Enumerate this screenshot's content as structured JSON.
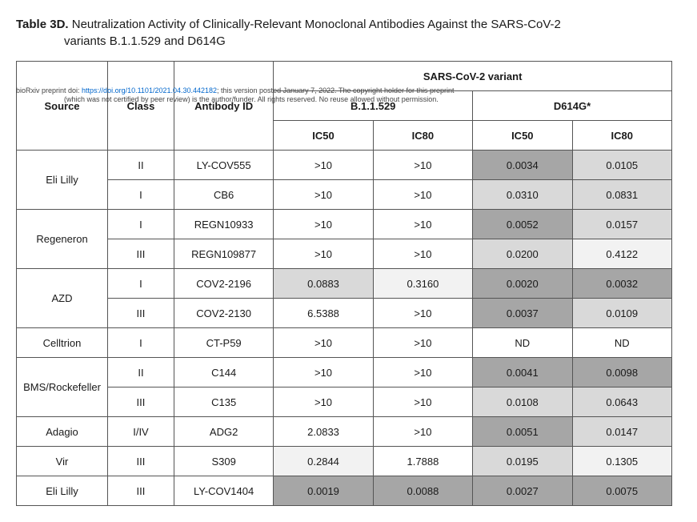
{
  "title": {
    "label": "Table 3D.",
    "text1": "Neutralization Activity of Clinically-Relevant Monoclonal Antibodies Against the SARS-CoV-2",
    "text2": "variants B.1.1.529 and D614G"
  },
  "preprint": {
    "prefix": "bioRxiv preprint doi: ",
    "doi": "https://doi.org/10.1101/2021.04.30.442182",
    "mid": "; this version posted January 7, 2022. The copyright holder for this preprint",
    "line2": "(which was not certified by peer review) is the author/funder. All rights reserved. No reuse allowed without permission."
  },
  "headers": {
    "source": "Source",
    "class": "Class",
    "antibody": "Antibody ID",
    "variant_span": "SARS-CoV-2 variant",
    "v1": "B.1.1.529",
    "v2": "D614G*",
    "ic50": "IC50",
    "ic80": "IC80"
  },
  "shades": {
    "white": "shade-0",
    "lightest": "shade-1",
    "light": "shade-2",
    "dark": "shade-3"
  },
  "rows": [
    {
      "source": "Eli Lilly",
      "source_rowspan": 2,
      "class": "II",
      "ab": "LY-COV555",
      "b_ic50": {
        "v": ">10",
        "s": "shade-0"
      },
      "b_ic80": {
        "v": ">10",
        "s": "shade-0"
      },
      "d_ic50": {
        "v": "0.0034",
        "s": "shade-3"
      },
      "d_ic80": {
        "v": "0.0105",
        "s": "shade-2"
      }
    },
    {
      "class": "I",
      "ab": "CB6",
      "b_ic50": {
        "v": ">10",
        "s": "shade-0"
      },
      "b_ic80": {
        "v": ">10",
        "s": "shade-0"
      },
      "d_ic50": {
        "v": "0.0310",
        "s": "shade-2"
      },
      "d_ic80": {
        "v": "0.0831",
        "s": "shade-2"
      }
    },
    {
      "source": "Regeneron",
      "source_rowspan": 2,
      "class": "I",
      "ab": "REGN10933",
      "b_ic50": {
        "v": ">10",
        "s": "shade-0"
      },
      "b_ic80": {
        "v": ">10",
        "s": "shade-0"
      },
      "d_ic50": {
        "v": "0.0052",
        "s": "shade-3"
      },
      "d_ic80": {
        "v": "0.0157",
        "s": "shade-2"
      }
    },
    {
      "class": "III",
      "ab": "REGN109877",
      "b_ic50": {
        "v": ">10",
        "s": "shade-0"
      },
      "b_ic80": {
        "v": ">10",
        "s": "shade-0"
      },
      "d_ic50": {
        "v": "0.0200",
        "s": "shade-2"
      },
      "d_ic80": {
        "v": "0.4122",
        "s": "shade-1"
      }
    },
    {
      "source": "AZD",
      "source_rowspan": 2,
      "class": "I",
      "ab": "COV2-2196",
      "b_ic50": {
        "v": "0.0883",
        "s": "shade-2"
      },
      "b_ic80": {
        "v": "0.3160",
        "s": "shade-1"
      },
      "d_ic50": {
        "v": "0.0020",
        "s": "shade-3"
      },
      "d_ic80": {
        "v": "0.0032",
        "s": "shade-3"
      }
    },
    {
      "class": "III",
      "ab": "COV2-2130",
      "b_ic50": {
        "v": "6.5388",
        "s": "shade-0"
      },
      "b_ic80": {
        "v": ">10",
        "s": "shade-0"
      },
      "d_ic50": {
        "v": "0.0037",
        "s": "shade-3"
      },
      "d_ic80": {
        "v": "0.0109",
        "s": "shade-2"
      }
    },
    {
      "source": "Celltrion",
      "source_rowspan": 1,
      "class": "I",
      "ab": "CT-P59",
      "b_ic50": {
        "v": ">10",
        "s": "shade-0"
      },
      "b_ic80": {
        "v": ">10",
        "s": "shade-0"
      },
      "d_ic50": {
        "v": "ND",
        "s": "shade-0"
      },
      "d_ic80": {
        "v": "ND",
        "s": "shade-0"
      }
    },
    {
      "source": "BMS/Rockefeller",
      "source_rowspan": 2,
      "class": "II",
      "ab": "C144",
      "b_ic50": {
        "v": ">10",
        "s": "shade-0"
      },
      "b_ic80": {
        "v": ">10",
        "s": "shade-0"
      },
      "d_ic50": {
        "v": "0.0041",
        "s": "shade-3"
      },
      "d_ic80": {
        "v": "0.0098",
        "s": "shade-3"
      }
    },
    {
      "class": "III",
      "ab": "C135",
      "b_ic50": {
        "v": ">10",
        "s": "shade-0"
      },
      "b_ic80": {
        "v": ">10",
        "s": "shade-0"
      },
      "d_ic50": {
        "v": "0.0108",
        "s": "shade-2"
      },
      "d_ic80": {
        "v": "0.0643",
        "s": "shade-2"
      }
    },
    {
      "source": "Adagio",
      "source_rowspan": 1,
      "class": "I/IV",
      "ab": "ADG2",
      "b_ic50": {
        "v": "2.0833",
        "s": "shade-0"
      },
      "b_ic80": {
        "v": ">10",
        "s": "shade-0"
      },
      "d_ic50": {
        "v": "0.0051",
        "s": "shade-3"
      },
      "d_ic80": {
        "v": "0.0147",
        "s": "shade-2"
      }
    },
    {
      "source": "Vir",
      "source_rowspan": 1,
      "class": "III",
      "ab": "S309",
      "b_ic50": {
        "v": "0.2844",
        "s": "shade-1"
      },
      "b_ic80": {
        "v": "1.7888",
        "s": "shade-0"
      },
      "d_ic50": {
        "v": "0.0195",
        "s": "shade-2"
      },
      "d_ic80": {
        "v": "0.1305",
        "s": "shade-1"
      }
    },
    {
      "source": "Eli Lilly",
      "source_rowspan": 1,
      "class": "III",
      "ab": "LY-COV1404",
      "b_ic50": {
        "v": "0.0019",
        "s": "shade-3"
      },
      "b_ic80": {
        "v": "0.0088",
        "s": "shade-3"
      },
      "d_ic50": {
        "v": "0.0027",
        "s": "shade-3"
      },
      "d_ic80": {
        "v": "0.0075",
        "s": "shade-3"
      }
    }
  ]
}
